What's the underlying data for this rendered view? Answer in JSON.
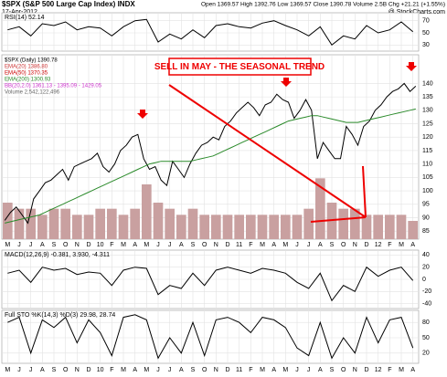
{
  "header": {
    "title": "$SPX (S&P 500 Large Cap Index) INDX",
    "date": "17-Apr-2012",
    "quote": "Open 1369.57 High 1392.76 Low 1369.57 Close 1390.78 Volume 2.5B Chg +21.21 (+1.55%)",
    "source": "@ StockCharts.com"
  },
  "annotation": "SELL IN MAY - THE SEASONAL TREND",
  "categories": [
    "M",
    "J",
    "J",
    "A",
    "S",
    "O",
    "N",
    "D",
    "10",
    "F",
    "M",
    "A",
    "M",
    "J",
    "J",
    "A",
    "S",
    "O",
    "N",
    "D",
    "11",
    "F",
    "M",
    "A",
    "M",
    "J",
    "J",
    "A",
    "S",
    "O",
    "N",
    "D",
    "12",
    "F",
    "M",
    "A"
  ],
  "chart_data": [
    {
      "type": "line",
      "label": "RSI(14) 52.14",
      "ylim": [
        20,
        80
      ],
      "yticks": [
        30,
        50,
        70
      ],
      "grid": true,
      "series": [
        {
          "color": "#000000",
          "values": [
            55,
            60,
            45,
            65,
            62,
            68,
            55,
            60,
            58,
            45,
            60,
            70,
            72,
            35,
            48,
            40,
            55,
            42,
            62,
            65,
            60,
            58,
            66,
            70,
            62,
            55,
            45,
            60,
            30,
            45,
            40,
            62,
            50,
            55,
            68,
            52
          ]
        }
      ]
    },
    {
      "type": "line",
      "ylim": [
        82,
        150
      ],
      "yticks": [
        85,
        90,
        95,
        100,
        105,
        110,
        115,
        120,
        125,
        130,
        135,
        140
      ],
      "grid": true,
      "legend": [
        {
          "text": "$SPX (Daily) 1390.78",
          "color": "#000000"
        },
        {
          "text": "EMA(20) 1386.80",
          "color": "#cc3333"
        },
        {
          "text": "EMA(50) 1370.35",
          "color": "#cc0000"
        },
        {
          "text": "EMA(200) 1300.93",
          "color": "#2a8a2a"
        },
        {
          "text": "BB(20,2.0) 1361.13 - 1395.09 - 1429.05",
          "color": "#cc33cc"
        },
        {
          "text": "Volume 2,542,122,496",
          "color": "#666666"
        }
      ],
      "series": [
        {
          "color": "#000000",
          "values": [
            89,
            92,
            94,
            91,
            88,
            97,
            100,
            103,
            104,
            106,
            108,
            104,
            109,
            110,
            111,
            112,
            114,
            109,
            107,
            110,
            115,
            117,
            120,
            121,
            112,
            108,
            109,
            104,
            102,
            111,
            108,
            105,
            110,
            114,
            117,
            118,
            120,
            119,
            124,
            126,
            129,
            131,
            133,
            131,
            128,
            132,
            133,
            136,
            134,
            133,
            127,
            130,
            134,
            130,
            112,
            118,
            115,
            112,
            112,
            124,
            121,
            117,
            124,
            126,
            130,
            132,
            135,
            137,
            138,
            140,
            137,
            139
          ]
        },
        {
          "color": "#2a8a2a",
          "values": [
            88,
            88.5,
            89,
            89.5,
            90,
            90.5,
            91,
            92,
            93,
            94,
            95,
            96,
            97,
            98,
            99,
            100,
            101,
            102,
            103,
            104,
            105,
            106,
            107,
            108,
            109,
            110,
            110.5,
            111,
            111,
            111,
            111,
            111,
            111,
            111.5,
            112,
            112.5,
            113,
            114,
            115,
            116,
            117,
            118,
            119,
            120,
            121,
            122,
            123,
            124,
            125,
            126,
            126.5,
            127,
            127.5,
            128,
            128,
            127.5,
            127,
            126.5,
            126,
            125.5,
            125.5,
            125.5,
            126,
            126.5,
            127,
            127.5,
            128,
            128.5,
            129,
            129.5,
            130,
            130.5
          ]
        }
      ],
      "volume": {
        "color": "#c9a0a0",
        "ylim": [
          0,
          30
        ],
        "values": [
          6,
          5,
          5,
          4,
          5,
          5,
          4,
          4,
          5,
          5,
          4,
          5,
          9,
          6,
          5,
          4,
          5,
          4,
          4,
          4,
          4,
          4,
          4,
          4,
          4,
          4,
          5,
          10,
          6,
          5,
          5,
          4,
          4,
          4,
          4,
          3
        ]
      }
    },
    {
      "type": "line",
      "label": "MACD(12,26,9) -0.381, 3.930, -4.311",
      "ylim": [
        -48,
        45
      ],
      "yticks": [
        -40,
        -20,
        0,
        20,
        40
      ],
      "grid": true,
      "series": [
        {
          "color": "#000000",
          "values": [
            10,
            15,
            -5,
            20,
            15,
            18,
            8,
            12,
            10,
            -10,
            15,
            20,
            18,
            -25,
            -10,
            -15,
            10,
            -10,
            15,
            20,
            15,
            10,
            18,
            15,
            10,
            -5,
            -15,
            10,
            -35,
            -10,
            -20,
            20,
            5,
            15,
            20,
            -2
          ]
        }
      ]
    },
    {
      "type": "line",
      "label": "Full STO %K(14,3) %D(3) 29.98, 28.74",
      "ylim": [
        0,
        100
      ],
      "yticks": [
        20,
        50,
        80
      ],
      "grid": true,
      "series": [
        {
          "color": "#000000",
          "values": [
            80,
            90,
            20,
            85,
            70,
            90,
            40,
            85,
            60,
            15,
            90,
            95,
            85,
            10,
            50,
            20,
            80,
            15,
            85,
            90,
            80,
            60,
            90,
            85,
            70,
            30,
            15,
            80,
            10,
            50,
            20,
            90,
            40,
            85,
            90,
            30
          ]
        }
      ]
    }
  ]
}
